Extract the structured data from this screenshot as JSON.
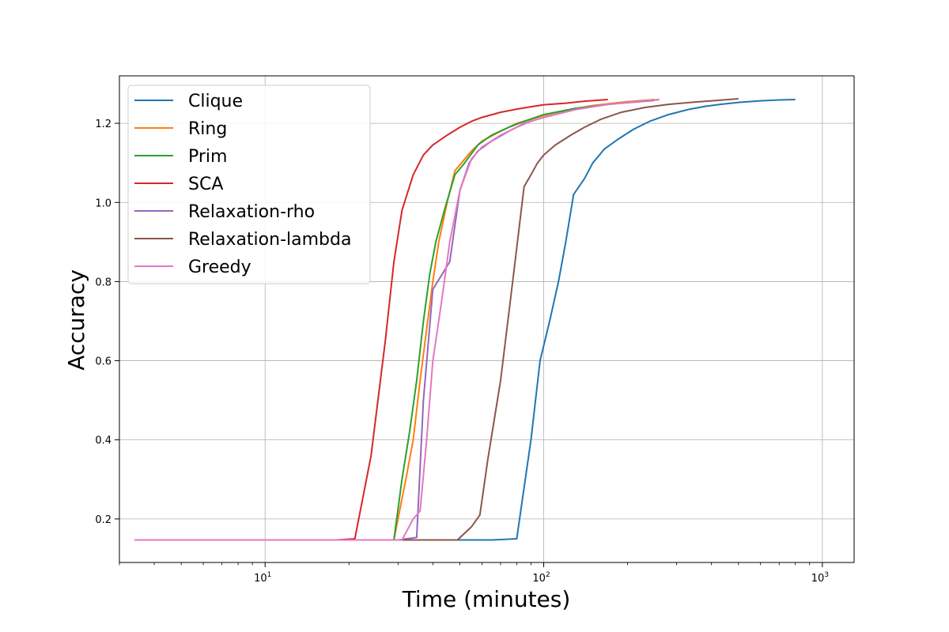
{
  "chart_data": {
    "type": "line",
    "title": "",
    "xlabel": "Time (minutes)",
    "ylabel": "Accuracy",
    "xscale": "log",
    "xlim": [
      3.0,
      1300
    ],
    "ylim": [
      0.09,
      1.32
    ],
    "x_ticks": [
      {
        "value": 10,
        "base": "10",
        "exp": "1"
      },
      {
        "value": 100,
        "base": "10",
        "exp": "2"
      },
      {
        "value": 1000,
        "base": "10",
        "exp": "3"
      }
    ],
    "y_ticks": [
      {
        "value": 0.2,
        "label": "0.2"
      },
      {
        "value": 0.4,
        "label": "0.4"
      },
      {
        "value": 0.6,
        "label": "0.6"
      },
      {
        "value": 0.8,
        "label": "0.8"
      },
      {
        "value": 1.0,
        "label": "1.0"
      },
      {
        "value": 1.2,
        "label": "1.2"
      }
    ],
    "grid": true,
    "legend_position": "upper-left",
    "series": [
      {
        "name": "Clique",
        "color": "#1f77b4",
        "x": [
          3.4,
          5,
          10,
          20,
          30,
          50,
          65,
          80,
          90,
          97,
          105,
          113,
          120,
          128,
          140,
          150,
          165,
          185,
          210,
          240,
          280,
          330,
          380,
          430,
          500,
          600,
          700,
          800
        ],
        "y": [
          0.147,
          0.147,
          0.147,
          0.147,
          0.147,
          0.147,
          0.147,
          0.15,
          0.4,
          0.6,
          0.7,
          0.8,
          0.9,
          1.02,
          1.06,
          1.1,
          1.135,
          1.16,
          1.185,
          1.205,
          1.222,
          1.235,
          1.243,
          1.248,
          1.253,
          1.257,
          1.259,
          1.26
        ]
      },
      {
        "name": "Ring",
        "color": "#ff7f0e",
        "x": [
          3.4,
          10,
          20,
          29,
          30,
          32,
          34,
          36,
          38,
          40,
          42,
          45,
          48,
          55,
          60,
          70,
          80,
          90,
          100,
          120,
          150,
          200,
          250
        ],
        "y": [
          0.147,
          0.147,
          0.147,
          0.147,
          0.2,
          0.3,
          0.4,
          0.55,
          0.68,
          0.8,
          0.9,
          1.0,
          1.08,
          1.13,
          1.155,
          1.18,
          1.2,
          1.21,
          1.22,
          1.233,
          1.245,
          1.255,
          1.26
        ]
      },
      {
        "name": "Prim",
        "color": "#2ca02c",
        "x": [
          3.4,
          10,
          20,
          29,
          31,
          33,
          35,
          37,
          39,
          41,
          44,
          48,
          52,
          58,
          65,
          75,
          85,
          100,
          130,
          180,
          250
        ],
        "y": [
          0.147,
          0.147,
          0.147,
          0.147,
          0.3,
          0.42,
          0.55,
          0.7,
          0.82,
          0.9,
          0.98,
          1.07,
          1.1,
          1.145,
          1.17,
          1.19,
          1.205,
          1.222,
          1.238,
          1.25,
          1.258
        ]
      },
      {
        "name": "SCA",
        "color": "#d62728",
        "x": [
          3.4,
          10,
          18,
          21,
          24,
          27,
          29,
          31,
          34,
          37,
          40,
          45,
          50,
          55,
          60,
          70,
          80,
          90,
          100,
          120,
          140,
          170
        ],
        "y": [
          0.147,
          0.147,
          0.147,
          0.15,
          0.36,
          0.65,
          0.85,
          0.98,
          1.07,
          1.12,
          1.145,
          1.17,
          1.19,
          1.205,
          1.215,
          1.228,
          1.236,
          1.242,
          1.247,
          1.251,
          1.256,
          1.26
        ]
      },
      {
        "name": "Relaxation-rho",
        "color": "#9467bd",
        "x": [
          3.4,
          10,
          20,
          30,
          35,
          37,
          40,
          46,
          50,
          54,
          58,
          65,
          75,
          85,
          100,
          130,
          170,
          220,
          260
        ],
        "y": [
          0.147,
          0.147,
          0.147,
          0.147,
          0.153,
          0.5,
          0.78,
          0.85,
          1.03,
          1.1,
          1.13,
          1.155,
          1.18,
          1.2,
          1.215,
          1.235,
          1.248,
          1.255,
          1.26
        ]
      },
      {
        "name": "Relaxation-lambda",
        "color": "#8c564b",
        "x": [
          3.4,
          10,
          20,
          30,
          40,
          49,
          55,
          59,
          63,
          70,
          78,
          85,
          90,
          95,
          100,
          110,
          125,
          140,
          160,
          190,
          230,
          280,
          350,
          420,
          500
        ],
        "y": [
          0.147,
          0.147,
          0.147,
          0.147,
          0.147,
          0.147,
          0.18,
          0.21,
          0.35,
          0.55,
          0.82,
          1.04,
          1.07,
          1.1,
          1.12,
          1.145,
          1.17,
          1.19,
          1.21,
          1.228,
          1.24,
          1.248,
          1.254,
          1.258,
          1.262
        ]
      },
      {
        "name": "Greedy",
        "color": "#e377c2",
        "x": [
          3.4,
          10,
          20,
          31,
          34,
          36,
          38,
          40,
          43,
          46,
          50,
          55,
          60,
          70,
          80,
          90,
          100,
          130,
          170,
          220,
          260
        ],
        "y": [
          0.147,
          0.147,
          0.147,
          0.147,
          0.2,
          0.22,
          0.4,
          0.6,
          0.75,
          0.9,
          1.03,
          1.11,
          1.14,
          1.17,
          1.19,
          1.205,
          1.215,
          1.235,
          1.248,
          1.256,
          1.26
        ]
      }
    ]
  }
}
